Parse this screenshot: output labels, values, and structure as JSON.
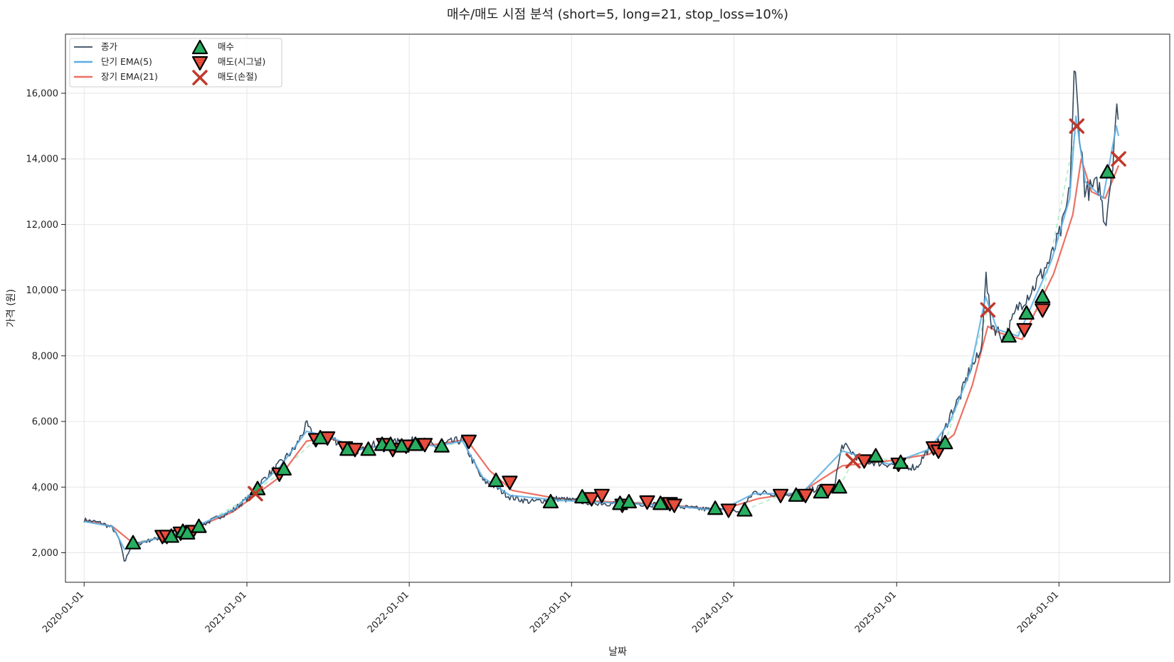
{
  "chart_data": {
    "type": "line",
    "title": "매수/매도 시점 분석 (short=5, long=21, stop_loss=10%)",
    "xlabel": "날짜",
    "ylabel": "가격 (원)",
    "x_ticks": [
      "2020-01-01",
      "2021-01-01",
      "2022-01-01",
      "2023-01-01",
      "2024-01-01",
      "2025-01-01",
      "2026-01-01"
    ],
    "y_ticks": [
      "2,000",
      "4,000",
      "6,000",
      "8,000",
      "10,000",
      "12,000",
      "14,000",
      "16,000"
    ],
    "xlim": [
      "2019-11-20",
      "2026-09-07"
    ],
    "ylim": [
      1100,
      17800
    ],
    "grid": true,
    "legend_position": "top-left",
    "legend": {
      "close": "종가",
      "ema_short": "단기 EMA(5)",
      "ema_long": "장기 EMA(21)",
      "buy": "매수",
      "sell_signal": "매도(시그널)",
      "sell_stop": "매도(손절)"
    },
    "colors": {
      "close": "#34495e",
      "ema_short": "#5dade2",
      "ema_long": "#ec7063",
      "buy": "#27ae60",
      "sell_signal": "#e74c3c",
      "sell_stop": "#c0392b",
      "trade_line": "#abebc6"
    },
    "series": [
      {
        "name": "종가",
        "x": [
          "2020-01-01",
          "2020-02-10",
          "2020-03-05",
          "2020-03-20",
          "2020-04-01",
          "2020-04-15",
          "2020-06-01",
          "2020-07-15",
          "2020-08-20",
          "2020-10-01",
          "2020-12-01",
          "2021-01-15",
          "2021-02-05",
          "2021-03-15",
          "2021-04-20",
          "2021-05-15",
          "2021-06-01",
          "2021-07-01",
          "2021-08-01",
          "2021-09-15",
          "2021-10-15",
          "2021-11-15",
          "2021-12-15",
          "2022-02-01",
          "2022-03-01",
          "2022-04-01",
          "2022-05-01",
          "2022-05-20",
          "2022-06-15",
          "2022-07-15",
          "2022-08-15",
          "2022-10-01",
          "2022-12-01",
          "2023-02-01",
          "2023-04-01",
          "2023-06-01",
          "2023-08-01",
          "2023-10-01",
          "2023-12-01",
          "2024-01-15",
          "2024-02-15",
          "2024-04-01",
          "2024-06-01",
          "2024-07-15",
          "2024-08-10",
          "2024-09-01",
          "2024-10-15",
          "2024-12-15",
          "2025-02-15",
          "2025-03-15",
          "2025-04-10",
          "2025-05-01",
          "2025-05-25",
          "2025-06-15",
          "2025-07-10",
          "2025-07-20",
          "2025-08-01",
          "2025-09-01",
          "2025-10-01",
          "2025-11-01",
          "2025-12-15",
          "2026-01-10",
          "2026-01-25",
          "2026-02-05",
          "2026-02-15",
          "2026-03-01",
          "2026-04-01",
          "2026-04-15",
          "2026-05-01",
          "2026-05-10",
          "2026-05-15"
        ],
        "values": [
          3000,
          2900,
          2750,
          2400,
          1700,
          2200,
          2400,
          2500,
          2700,
          2900,
          3300,
          3800,
          4200,
          4700,
          5200,
          5900,
          5500,
          5600,
          5300,
          5100,
          5300,
          5300,
          5400,
          5400,
          5200,
          5350,
          5450,
          4900,
          4200,
          4000,
          3700,
          3550,
          3650,
          3550,
          3500,
          3500,
          3450,
          3350,
          3300,
          3250,
          3850,
          3800,
          3800,
          4000,
          3800,
          5300,
          4800,
          4700,
          4600,
          5200,
          5400,
          6200,
          6800,
          7600,
          8100,
          10500,
          9000,
          8500,
          9500,
          10000,
          11000,
          12000,
          13000,
          16800,
          15000,
          13000,
          13200,
          12000,
          13800,
          15600,
          14800
        ]
      },
      {
        "name": "단기 EMA(5)",
        "x": [
          "2020-01-01",
          "2020-03-05",
          "2020-04-01",
          "2020-04-20",
          "2020-06-01",
          "2020-08-20",
          "2020-12-01",
          "2021-03-15",
          "2021-05-15",
          "2021-07-01",
          "2021-09-15",
          "2021-12-15",
          "2022-03-01",
          "2022-05-01",
          "2022-06-15",
          "2022-08-15",
          "2022-12-01",
          "2023-04-01",
          "2023-08-01",
          "2023-12-01",
          "2024-02-15",
          "2024-06-01",
          "2024-09-01",
          "2024-12-15",
          "2025-03-15",
          "2025-05-01",
          "2025-06-15",
          "2025-07-20",
          "2025-08-15",
          "2025-10-01",
          "2025-12-15",
          "2026-01-25",
          "2026-02-08",
          "2026-03-01",
          "2026-04-10",
          "2026-05-10",
          "2026-05-15"
        ],
        "values": [
          2950,
          2800,
          2100,
          2250,
          2400,
          2700,
          3300,
          4600,
          5700,
          5550,
          5150,
          5350,
          5250,
          5400,
          4300,
          3750,
          3600,
          3520,
          3450,
          3280,
          3800,
          3800,
          5100,
          4700,
          5150,
          6000,
          7500,
          9800,
          8800,
          8600,
          10900,
          12800,
          15300,
          13300,
          12800,
          15000,
          14700
        ]
      },
      {
        "name": "장기 EMA(21)",
        "x": [
          "2020-01-01",
          "2020-03-05",
          "2020-04-10",
          "2020-05-01",
          "2020-06-01",
          "2020-08-20",
          "2020-12-01",
          "2021-03-15",
          "2021-05-15",
          "2021-07-01",
          "2021-09-15",
          "2021-12-15",
          "2022-03-01",
          "2022-05-10",
          "2022-07-01",
          "2022-08-20",
          "2022-12-01",
          "2023-04-01",
          "2023-08-01",
          "2023-12-01",
          "2024-02-25",
          "2024-06-01",
          "2024-09-01",
          "2024-12-15",
          "2025-03-15",
          "2025-05-10",
          "2025-06-20",
          "2025-07-25",
          "2025-08-20",
          "2025-10-10",
          "2025-12-20",
          "2026-02-01",
          "2026-02-20",
          "2026-03-15",
          "2026-04-15",
          "2026-05-15"
        ],
        "values": [
          3000,
          2800,
          2400,
          2300,
          2400,
          2650,
          3250,
          4300,
          5400,
          5500,
          5200,
          5300,
          5300,
          5450,
          4500,
          3900,
          3650,
          3550,
          3470,
          3300,
          3650,
          3850,
          4650,
          4800,
          5000,
          5600,
          7100,
          8900,
          8700,
          8500,
          10500,
          12300,
          14000,
          13000,
          12800,
          13800
        ]
      }
    ],
    "buy_points": {
      "x": [
        "2020-04-20",
        "2020-07-15",
        "2020-08-10",
        "2020-08-20",
        "2020-09-15",
        "2021-01-25",
        "2021-03-25",
        "2021-06-15",
        "2021-08-15",
        "2021-10-01",
        "2021-11-01",
        "2021-11-20",
        "2021-12-15",
        "2022-01-15",
        "2022-03-15",
        "2022-07-15",
        "2022-11-15",
        "2023-01-25",
        "2023-04-20",
        "2023-05-10",
        "2023-07-20",
        "2023-11-20",
        "2024-01-25",
        "2024-05-20",
        "2024-07-15",
        "2024-08-25",
        "2024-11-15",
        "2025-01-10",
        "2025-04-20",
        "2025-09-10",
        "2025-10-20",
        "2025-11-25",
        "2026-04-20"
      ],
      "y": [
        2300,
        2500,
        2650,
        2600,
        2800,
        3950,
        4550,
        5500,
        5150,
        5150,
        5300,
        5300,
        5250,
        5300,
        5250,
        4200,
        3550,
        3700,
        3500,
        3550,
        3500,
        3350,
        3300,
        3750,
        3850,
        4000,
        4950,
        4750,
        5350,
        8600,
        9300,
        9800,
        13600
      ]
    },
    "sell_signal_points": {
      "x": [
        "2020-06-25",
        "2020-07-05",
        "2020-08-05",
        "2020-09-01",
        "2021-03-15",
        "2021-06-05",
        "2021-07-01",
        "2021-08-10",
        "2021-09-01",
        "2021-11-05",
        "2021-11-25",
        "2021-12-25",
        "2022-02-05",
        "2022-05-15",
        "2022-08-15",
        "2023-02-15",
        "2023-03-10",
        "2023-04-25",
        "2023-06-20",
        "2023-08-10",
        "2023-08-20",
        "2023-12-20",
        "2024-04-15",
        "2024-06-10",
        "2024-07-30",
        "2024-10-20",
        "2025-01-05",
        "2025-03-25",
        "2025-04-05",
        "2025-10-15",
        "2025-11-25"
      ],
      "y": [
        2500,
        2500,
        2600,
        2650,
        4400,
        5450,
        5500,
        5200,
        5150,
        5300,
        5150,
        5250,
        5300,
        5400,
        4150,
        3650,
        3750,
        3450,
        3550,
        3500,
        3450,
        3300,
        3750,
        3750,
        3900,
        4800,
        4700,
        5200,
        5100,
        8800,
        9400
      ]
    },
    "sell_stop_points": {
      "x": [
        "2021-01-20",
        "2024-09-25",
        "2025-07-25",
        "2026-02-10",
        "2026-05-15"
      ],
      "y": [
        3800,
        4800,
        9400,
        15000,
        14000
      ]
    }
  }
}
